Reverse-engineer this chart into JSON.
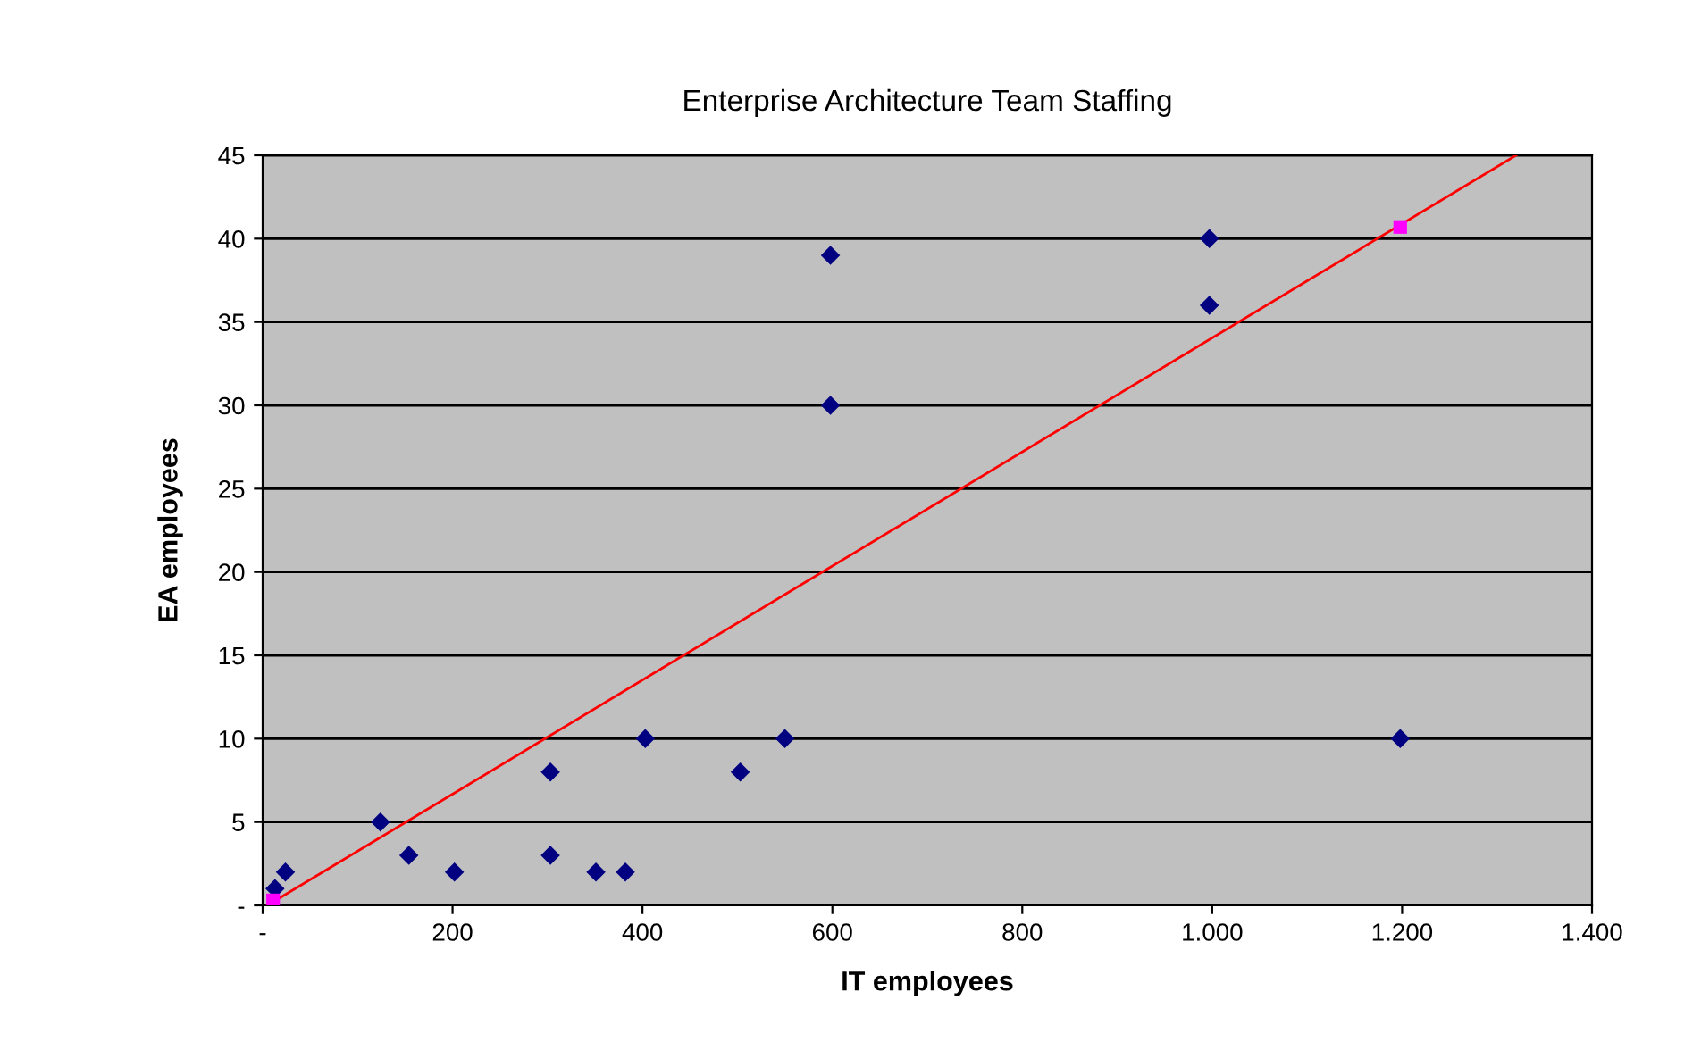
{
  "chart_data": {
    "type": "scatter",
    "title": "Enterprise Architecture Team Staffing",
    "xlabel": "IT employees",
    "ylabel": "EA employees",
    "xlim": [
      0,
      1400
    ],
    "ylim": [
      0,
      45
    ],
    "xticks": [
      {
        "value": 0,
        "label": "-"
      },
      200,
      400,
      600,
      800,
      {
        "value": 1000,
        "label": "1.000"
      },
      {
        "value": 1200,
        "label": "1.200"
      },
      {
        "value": 1400,
        "label": "1.400"
      }
    ],
    "yticks": [
      {
        "value": 0,
        "label": "-"
      },
      5,
      10,
      15,
      20,
      25,
      30,
      35,
      40,
      45
    ],
    "grid": "y",
    "legend": false,
    "series": [
      {
        "marker": "diamond",
        "color": "#000080",
        "x": [
          13,
          24,
          124,
          154,
          202,
          303,
          303,
          351,
          382,
          403,
          503,
          550,
          598,
          598,
          997,
          997,
          1198
        ],
        "values": [
          1,
          2,
          5,
          3,
          2,
          8,
          3,
          2,
          2,
          10,
          8,
          10,
          39,
          30,
          40,
          36,
          10
        ]
      },
      {
        "type": "line",
        "marker": "none",
        "line_style": "solid",
        "color": "#ff0000",
        "x": [
          5,
          1320
        ],
        "values": [
          0,
          45
        ]
      },
      {
        "marker": "square",
        "color": "#ff00ff",
        "x": [
          11,
          1198
        ],
        "values": [
          0.3,
          40.7
        ]
      }
    ]
  }
}
